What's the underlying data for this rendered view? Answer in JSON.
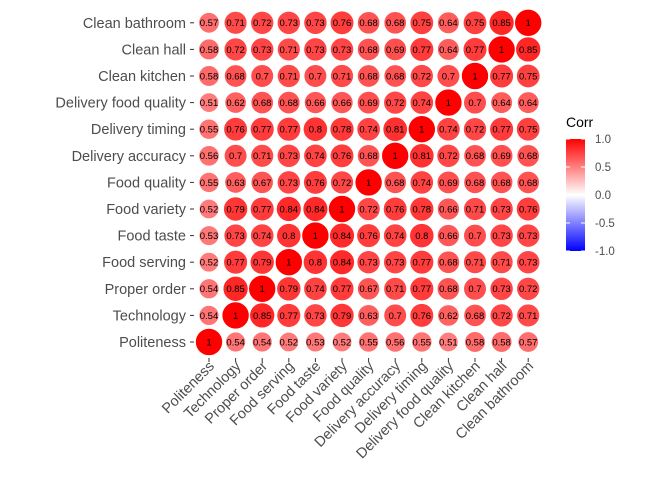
{
  "chart_data": {
    "type": "heatmap",
    "variables": [
      "Politeness",
      "Technology",
      "Proper order",
      "Food serving",
      "Food taste",
      "Food variety",
      "Food quality",
      "Delivery accuracy",
      "Delivery timing",
      "Delivery food quality",
      "Clean kitchen",
      "Clean hall",
      "Clean bathroom"
    ],
    "matrix": [
      [
        1,
        0.54,
        0.54,
        0.52,
        0.53,
        0.52,
        0.55,
        0.56,
        0.55,
        0.51,
        0.58,
        0.58,
        0.57
      ],
      [
        0.54,
        1,
        0.85,
        0.77,
        0.73,
        0.79,
        0.63,
        0.7,
        0.76,
        0.62,
        0.68,
        0.72,
        0.71
      ],
      [
        0.54,
        0.85,
        1,
        0.79,
        0.74,
        0.77,
        0.67,
        0.71,
        0.77,
        0.68,
        0.7,
        0.73,
        0.72
      ],
      [
        0.52,
        0.77,
        0.79,
        1,
        0.8,
        0.84,
        0.73,
        0.73,
        0.77,
        0.68,
        0.71,
        0.71,
        0.73
      ],
      [
        0.53,
        0.73,
        0.74,
        0.8,
        1,
        0.84,
        0.76,
        0.74,
        0.8,
        0.66,
        0.7,
        0.73,
        0.73
      ],
      [
        0.52,
        0.79,
        0.77,
        0.84,
        0.84,
        1,
        0.72,
        0.76,
        0.78,
        0.66,
        0.71,
        0.73,
        0.76
      ],
      [
        0.55,
        0.63,
        0.67,
        0.73,
        0.76,
        0.72,
        1,
        0.68,
        0.74,
        0.69,
        0.68,
        0.68,
        0.68
      ],
      [
        0.56,
        0.7,
        0.71,
        0.73,
        0.74,
        0.76,
        0.68,
        1,
        0.81,
        0.72,
        0.68,
        0.69,
        0.68
      ],
      [
        0.55,
        0.76,
        0.77,
        0.77,
        0.8,
        0.78,
        0.74,
        0.81,
        1,
        0.74,
        0.72,
        0.77,
        0.75
      ],
      [
        0.51,
        0.62,
        0.68,
        0.68,
        0.66,
        0.66,
        0.69,
        0.72,
        0.74,
        1,
        0.7,
        0.64,
        0.64
      ],
      [
        0.58,
        0.68,
        0.7,
        0.71,
        0.7,
        0.71,
        0.68,
        0.68,
        0.72,
        0.7,
        1,
        0.77,
        0.75
      ],
      [
        0.58,
        0.72,
        0.73,
        0.71,
        0.73,
        0.73,
        0.68,
        0.69,
        0.77,
        0.64,
        0.77,
        1,
        0.85
      ],
      [
        0.57,
        0.71,
        0.72,
        0.73,
        0.73,
        0.76,
        0.68,
        0.68,
        0.75,
        0.64,
        0.75,
        0.85,
        1
      ]
    ],
    "legend": {
      "title": "Corr",
      "ticks": [
        "1.0",
        "0.5",
        "0.0",
        "-0.5",
        "-1.0"
      ],
      "range": [
        -1,
        1
      ],
      "colors": {
        "low": "#0000ff",
        "mid": "#ffffff",
        "high": "#ff0000"
      },
      "placement": "right"
    },
    "marker": "circle",
    "size_scaled_by": "abs(value)",
    "grid": false
  }
}
